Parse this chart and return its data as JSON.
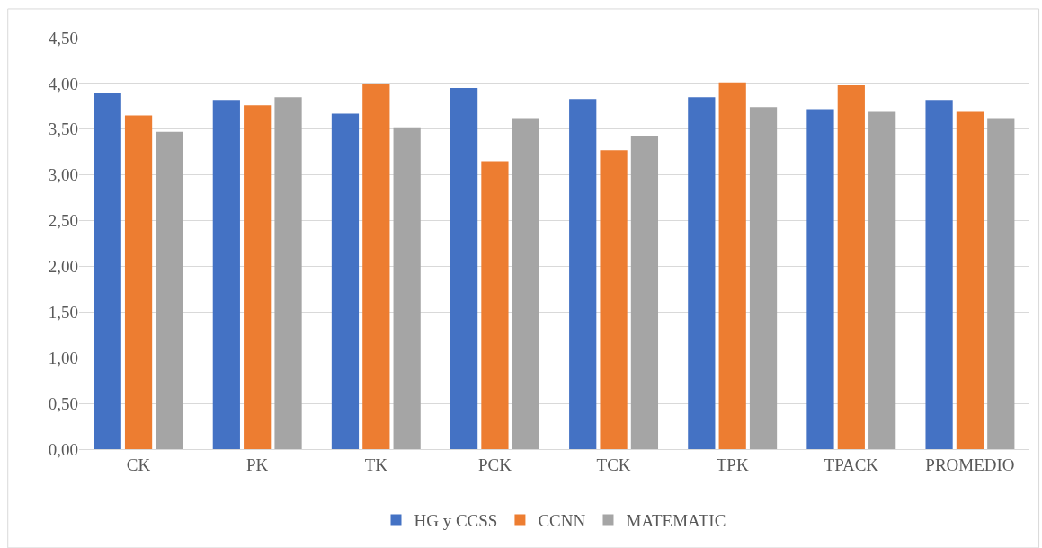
{
  "chart_data": {
    "type": "bar",
    "categories": [
      "CK",
      "PK",
      "TK",
      "PCK",
      "TCK",
      "TPK",
      "TPACK",
      "PROMEDIO"
    ],
    "series": [
      {
        "name": "HG y CCSS",
        "color": "#4472c4",
        "values": [
          3.9,
          3.82,
          3.67,
          3.95,
          3.83,
          3.85,
          3.72,
          3.82
        ]
      },
      {
        "name": "CCNN",
        "color": "#ed7d31",
        "values": [
          3.65,
          3.76,
          4.0,
          3.15,
          3.27,
          4.01,
          3.98,
          3.69
        ]
      },
      {
        "name": "MATEMATIC",
        "color": "#a5a5a5",
        "values": [
          3.47,
          3.85,
          3.52,
          3.62,
          3.43,
          3.74,
          3.69,
          3.62
        ]
      }
    ],
    "ylim": [
      0,
      4.5
    ],
    "yticks": [
      {
        "value": 0,
        "label": "0,00"
      },
      {
        "value": 0.5,
        "label": "0,50"
      },
      {
        "value": 1,
        "label": "1,00"
      },
      {
        "value": 1.5,
        "label": "1,50"
      },
      {
        "value": 2,
        "label": "2,00"
      },
      {
        "value": 2.5,
        "label": "2,50"
      },
      {
        "value": 3,
        "label": "3,00"
      },
      {
        "value": 3.5,
        "label": "3,50"
      },
      {
        "value": 4,
        "label": "4,00"
      },
      {
        "value": 4.5,
        "label": "4,50"
      }
    ],
    "grid": "y",
    "legend": "bottom"
  }
}
